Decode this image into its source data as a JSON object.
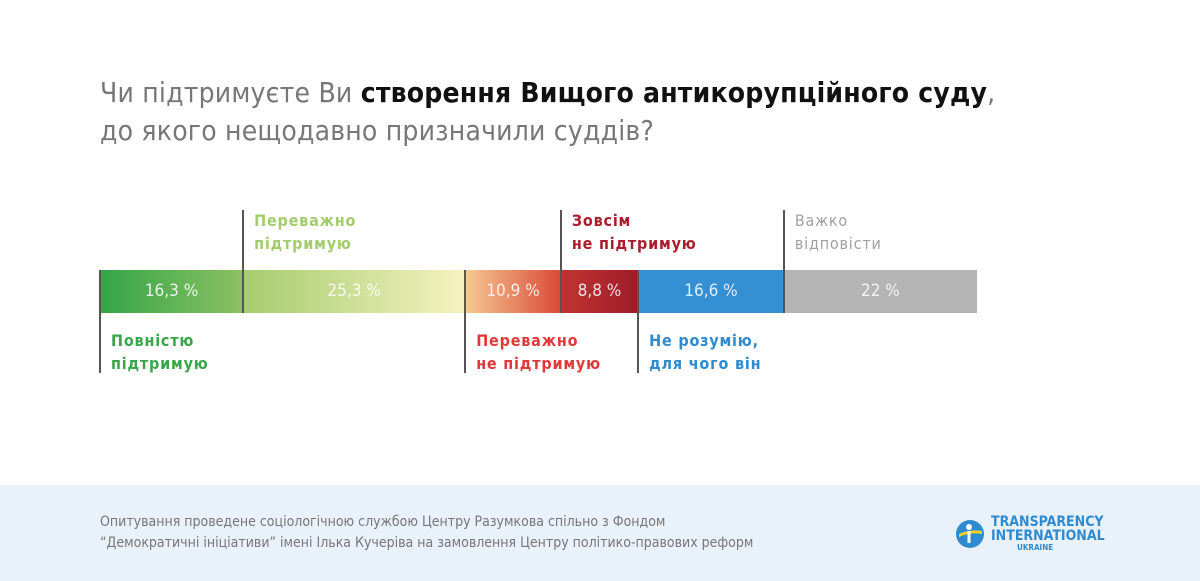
{
  "title": {
    "pre": "Чи підтримуєте Ви ",
    "bold": "створення Вищого антикорупційного суду",
    "post": ",",
    "line2": "до якого нещодавно призначили суддів?"
  },
  "chart_data": {
    "type": "bar",
    "orientation": "horizontal-stacked",
    "categories": [
      "Повністю підтримую",
      "Переважно підтримую",
      "Переважно не підтримую",
      "Зовсім не підтримую",
      "Не розумію, для чого він",
      "Важко відповісти"
    ],
    "values": [
      16.3,
      25.3,
      10.9,
      8.8,
      16.6,
      22
    ],
    "value_labels": [
      "16,3 %",
      "25,3 %",
      "10,9 %",
      "8,8 %",
      "16,6 %",
      "22 %"
    ],
    "label_lines": [
      [
        "Повністю",
        "підтримую"
      ],
      [
        "Переважно",
        "підтримую"
      ],
      [
        "Переважно",
        "не підтримую"
      ],
      [
        "Зовсім",
        "не підтримую"
      ],
      [
        "Не розумію,",
        "для чого він"
      ],
      [
        "Важко",
        "відповісти"
      ]
    ],
    "label_positions": [
      "bottom",
      "top",
      "bottom",
      "top",
      "bottom",
      "top"
    ],
    "colors": [
      "#3aa64a",
      "#a3cc6e",
      "#e0393a",
      "#a81e2d",
      "#2e8bd0",
      "#a0a0a0"
    ],
    "gradients": [
      [
        "#33a548",
        "#8cc063"
      ],
      [
        "#a5cc6e",
        "#f6f2c0"
      ],
      [
        "#f6c894",
        "#d94a38"
      ],
      [
        "#c23432",
        "#9e1c2a"
      ],
      [
        "#3490d2",
        "#3490d2"
      ],
      [
        "#b4b4b4",
        "#b4b4b4"
      ]
    ]
  },
  "footer": {
    "line1": "Опитування проведене соціологічною службою Центру Разумкова спільно з Фондом",
    "line2": "“Демократичні ініціативи” імені Ілька Кучеріва на замовлення Центру політико-правових реформ"
  },
  "logo": {
    "line1": "TRANSPARENCY",
    "line2": "INTERNATIONAL",
    "line3": "UKRAINE"
  }
}
